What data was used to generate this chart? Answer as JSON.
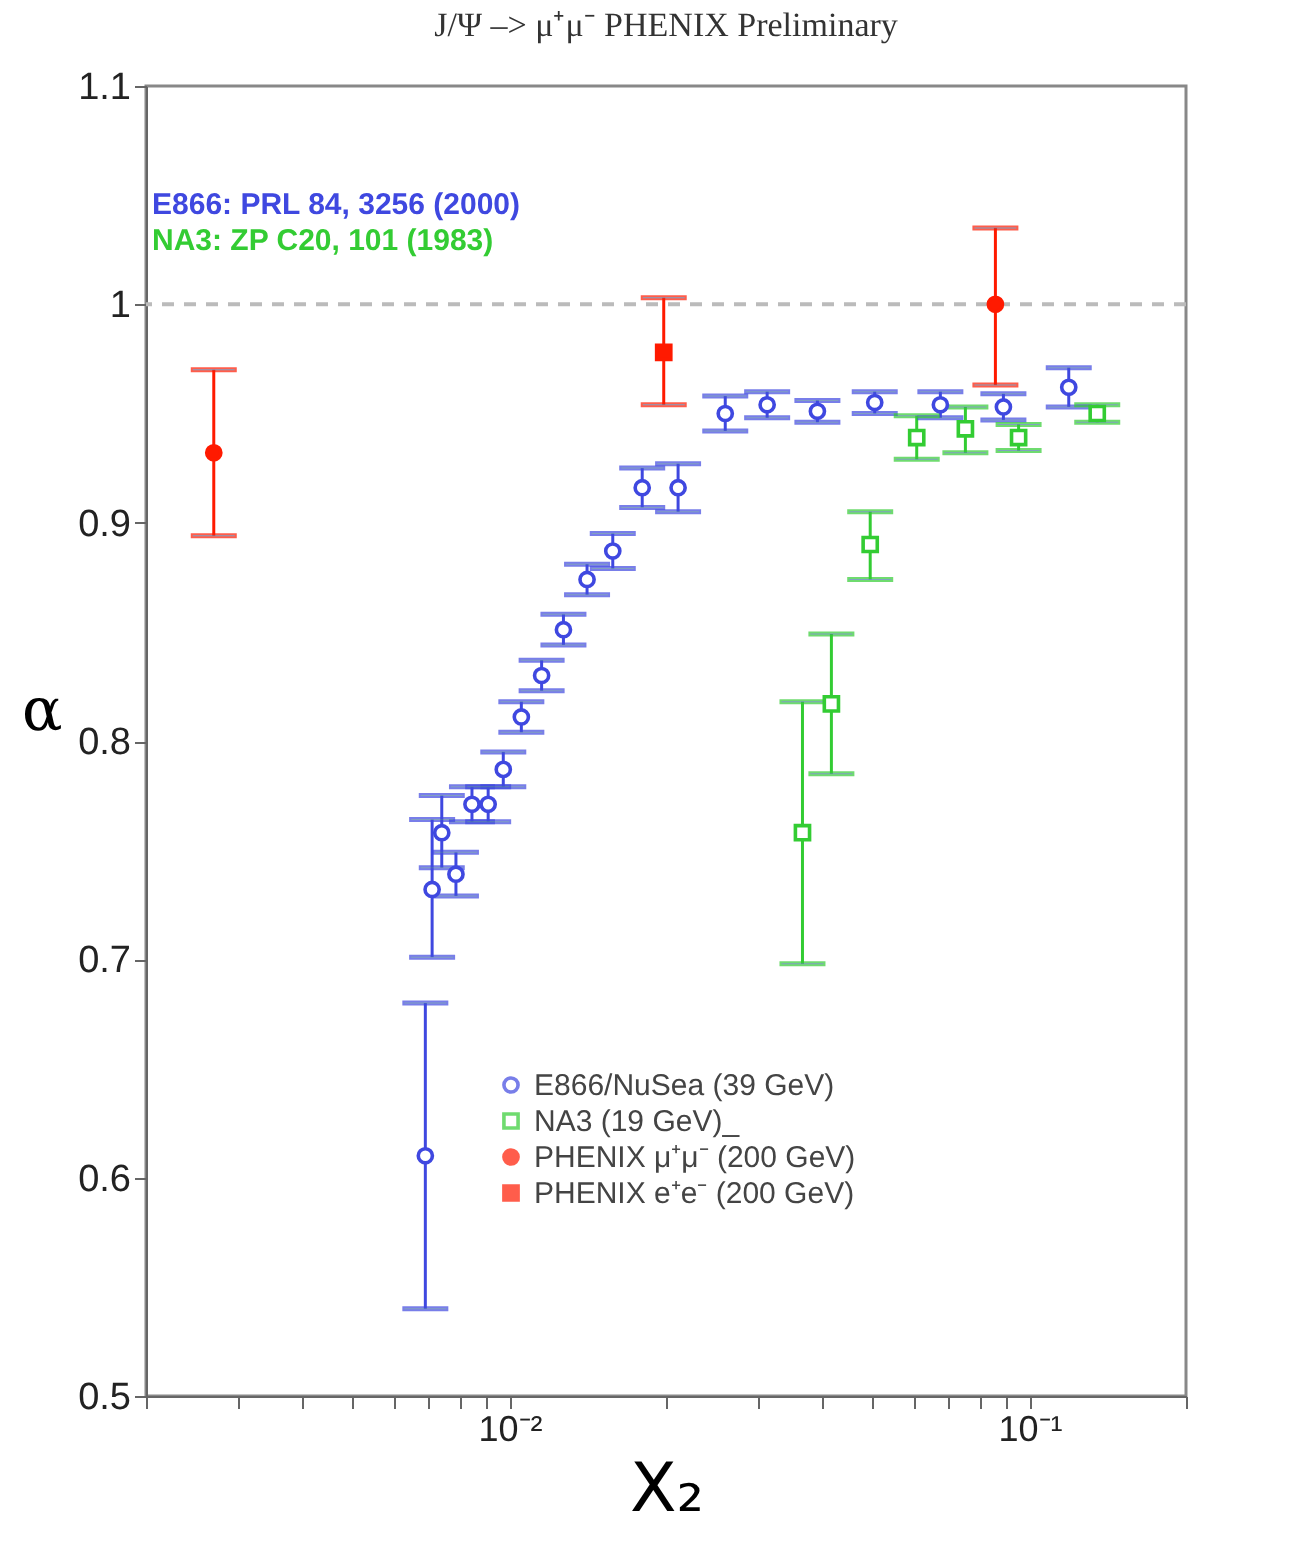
{
  "chart_data": {
    "type": "scatter",
    "title": "J/Ψ –> μ⁺μ⁻  PHENIX Preliminary",
    "xlabel": "X₂",
    "ylabel": "α",
    "log": "x",
    "annotations": [
      "E866: PRL 84, 3256 (2000)",
      "NA3: ZP C20, 101 (1983)"
    ],
    "xlim": [
      0.002,
      0.2
    ],
    "xticks": [
      {
        "value": 0.002,
        "label": null
      },
      {
        "value": 0.003,
        "label": null
      },
      {
        "value": 0.004,
        "label": null
      },
      {
        "value": 0.005,
        "label": null
      },
      {
        "value": 0.006,
        "label": null
      },
      {
        "value": 0.007,
        "label": null
      },
      {
        "value": 0.008,
        "label": null
      },
      {
        "value": 0.009,
        "label": null
      },
      {
        "value": 0.01,
        "label": "10⁻²"
      },
      {
        "value": 0.02,
        "label": null
      },
      {
        "value": 0.03,
        "label": null
      },
      {
        "value": 0.04,
        "label": null
      },
      {
        "value": 0.05,
        "label": null
      },
      {
        "value": 0.06,
        "label": null
      },
      {
        "value": 0.07,
        "label": null
      },
      {
        "value": 0.08,
        "label": null
      },
      {
        "value": 0.09,
        "label": null
      },
      {
        "value": 0.1,
        "label": "10⁻¹"
      },
      {
        "value": 0.2,
        "label": null
      }
    ],
    "ylim": [
      0.5,
      1.1
    ],
    "yticks": [
      0.5,
      0.6,
      0.7,
      0.8,
      0.9,
      1.0,
      1.1
    ],
    "grid": false,
    "legend": "bottom right",
    "ref_lines": [
      {
        "axis": "y",
        "value": 1.0,
        "color": "#bbbbbb",
        "line_style": "dashed"
      }
    ],
    "series": [
      {
        "name": "E866/NuSea (39 GeV)",
        "color": "#3f48e0",
        "marker": "circle",
        "x": [
          0.00689,
          0.0071,
          0.00741,
          0.00789,
          0.00847,
          0.0091,
          0.00973,
          0.01054,
          0.01153,
          0.0127,
          0.0141,
          0.0158,
          0.018,
          0.0211,
          0.026,
          0.0313,
          0.0391,
          0.0504,
          0.0674,
          0.0891,
          0.119
        ],
        "values": [
          0.61,
          0.732,
          0.758,
          0.739,
          0.771,
          0.771,
          0.787,
          0.811,
          0.83,
          0.851,
          0.874,
          0.887,
          0.916,
          0.916,
          0.95,
          0.954,
          0.951,
          0.955,
          0.954,
          0.953,
          0.962
        ],
        "errors": [
          [
            0.54,
            0.68
          ],
          [
            0.701,
            0.764
          ],
          [
            0.742,
            0.775
          ],
          [
            0.729,
            0.749
          ],
          [
            0.763,
            0.779
          ],
          [
            0.763,
            0.779
          ],
          [
            0.779,
            0.795
          ],
          [
            0.804,
            0.818
          ],
          [
            0.823,
            0.837
          ],
          [
            0.844,
            0.858
          ],
          [
            0.867,
            0.881
          ],
          [
            0.879,
            0.895
          ],
          [
            0.907,
            0.925
          ],
          [
            0.905,
            0.927
          ],
          [
            0.942,
            0.958
          ],
          [
            0.948,
            0.96
          ],
          [
            0.946,
            0.956
          ],
          [
            0.95,
            0.96
          ],
          [
            0.948,
            0.96
          ],
          [
            0.947,
            0.959
          ],
          [
            0.953,
            0.971
          ]
        ]
      },
      {
        "name": "NA3 (19 GeV)_",
        "color": "#33cc33",
        "marker": "square",
        "x": [
          0.0366,
          0.0416,
          0.0494,
          0.0607,
          0.0753,
          0.0953,
          0.135
        ],
        "values": [
          0.758,
          0.817,
          0.89,
          0.939,
          0.943,
          0.939,
          0.95
        ],
        "errors": [
          [
            0.698,
            0.818
          ],
          [
            0.785,
            0.849
          ],
          [
            0.874,
            0.905
          ],
          [
            0.929,
            0.949
          ],
          [
            0.932,
            0.953
          ],
          [
            0.933,
            0.945
          ],
          [
            0.946,
            0.954
          ]
        ]
      },
      {
        "name": "PHENIX μ⁺μ⁻ (200 GeV)",
        "color": "#ff1a00",
        "marker": "circle",
        "x": [
          0.0027,
          0.086
        ],
        "values": [
          0.932,
          1.0
        ],
        "errors": [
          [
            0.894,
            0.97
          ],
          [
            0.963,
            1.035
          ]
        ]
      },
      {
        "name": "PHENIX e⁺e⁻ (200 GeV)",
        "color": "#ff1a00",
        "marker": "square",
        "x": [
          0.0198
        ],
        "values": [
          0.978
        ],
        "errors": [
          [
            0.954,
            1.003
          ]
        ]
      }
    ]
  }
}
